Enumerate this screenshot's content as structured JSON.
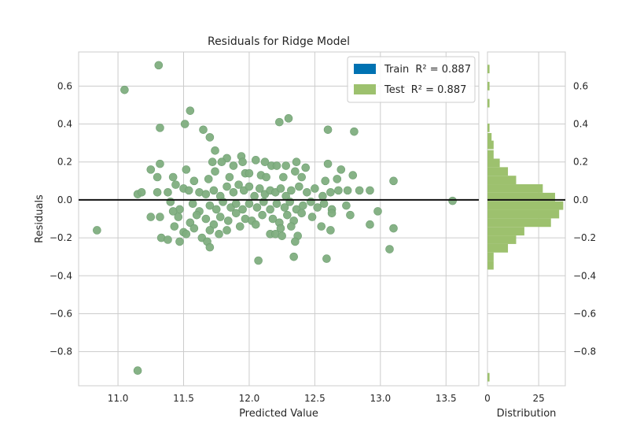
{
  "chart_data": {
    "type": "scatter",
    "title": "Residuals for Ridge Model",
    "xlabel": "Predicted Value",
    "ylabel": "Residuals",
    "xlim": [
      10.7,
      13.75
    ],
    "ylim": [
      -0.98,
      0.78
    ],
    "x_ticks": [
      "11.0",
      "11.5",
      "12.0",
      "12.5",
      "13.0",
      "13.5"
    ],
    "y_ticks": [
      "0.6",
      "0.4",
      "0.2",
      "0.0",
      "−0.2",
      "−0.4",
      "−0.6",
      "−0.8"
    ],
    "grid": true,
    "zero_line": 0,
    "legend": {
      "placement": "top-right",
      "entries": [
        {
          "prefix": "Train",
          "r2_text": "R² = 0.887",
          "color": "#0072b2"
        },
        {
          "prefix": "Test",
          "r2_text": "R² = 0.887",
          "color": "#9dc16e"
        }
      ]
    },
    "point_color": "#7fae80",
    "series": [
      {
        "name": "Test R² = 0.887",
        "points": [
          [
            11.31,
            0.71
          ],
          [
            11.05,
            0.58
          ],
          [
            11.55,
            0.47
          ],
          [
            11.51,
            0.4
          ],
          [
            11.32,
            0.38
          ],
          [
            11.65,
            0.37
          ],
          [
            11.7,
            0.33
          ],
          [
            11.74,
            0.26
          ],
          [
            12.23,
            0.41
          ],
          [
            12.3,
            0.43
          ],
          [
            12.6,
            0.37
          ],
          [
            12.8,
            0.36
          ],
          [
            11.25,
            0.16
          ],
          [
            11.32,
            0.19
          ],
          [
            11.52,
            0.16
          ],
          [
            11.83,
            0.22
          ],
          [
            11.79,
            0.2
          ],
          [
            11.72,
            0.2
          ],
          [
            11.88,
            0.18
          ],
          [
            11.94,
            0.23
          ],
          [
            11.95,
            0.2
          ],
          [
            12.05,
            0.21
          ],
          [
            12.12,
            0.2
          ],
          [
            12.17,
            0.18
          ],
          [
            12.21,
            0.18
          ],
          [
            12.28,
            0.18
          ],
          [
            12.36,
            0.2
          ],
          [
            12.43,
            0.17
          ],
          [
            12.6,
            0.19
          ],
          [
            12.7,
            0.16
          ],
          [
            12.79,
            0.13
          ],
          [
            11.3,
            0.12
          ],
          [
            11.42,
            0.12
          ],
          [
            11.58,
            0.1
          ],
          [
            11.69,
            0.11
          ],
          [
            11.74,
            0.15
          ],
          [
            11.85,
            0.12
          ],
          [
            11.97,
            0.14
          ],
          [
            12.0,
            0.14
          ],
          [
            12.09,
            0.13
          ],
          [
            12.13,
            0.12
          ],
          [
            12.26,
            0.12
          ],
          [
            12.35,
            0.15
          ],
          [
            12.4,
            0.12
          ],
          [
            12.58,
            0.1
          ],
          [
            12.67,
            0.11
          ],
          [
            13.1,
            0.1
          ],
          [
            11.15,
            0.03
          ],
          [
            11.18,
            0.04
          ],
          [
            11.3,
            0.04
          ],
          [
            11.38,
            0.04
          ],
          [
            11.44,
            0.08
          ],
          [
            11.5,
            0.06
          ],
          [
            11.54,
            0.05
          ],
          [
            11.62,
            0.04
          ],
          [
            11.67,
            0.03
          ],
          [
            11.73,
            0.05
          ],
          [
            11.78,
            0.02
          ],
          [
            11.83,
            0.07
          ],
          [
            11.88,
            0.04
          ],
          [
            11.92,
            0.08
          ],
          [
            11.96,
            0.05
          ],
          [
            12.0,
            0.07
          ],
          [
            12.04,
            0.02
          ],
          [
            12.08,
            0.06
          ],
          [
            12.12,
            0.03
          ],
          [
            12.16,
            0.05
          ],
          [
            12.2,
            0.04
          ],
          [
            12.24,
            0.06
          ],
          [
            12.28,
            0.02
          ],
          [
            12.32,
            0.05
          ],
          [
            12.38,
            0.07
          ],
          [
            12.44,
            0.04
          ],
          [
            12.5,
            0.06
          ],
          [
            12.56,
            0.02
          ],
          [
            12.62,
            0.04
          ],
          [
            12.68,
            0.05
          ],
          [
            12.75,
            0.05
          ],
          [
            12.84,
            0.05
          ],
          [
            12.92,
            0.05
          ],
          [
            11.4,
            -0.01
          ],
          [
            11.47,
            -0.05
          ],
          [
            11.57,
            -0.02
          ],
          [
            11.62,
            -0.06
          ],
          [
            11.7,
            -0.03
          ],
          [
            11.75,
            -0.05
          ],
          [
            11.8,
            -0.01
          ],
          [
            11.86,
            -0.04
          ],
          [
            11.9,
            -0.02
          ],
          [
            11.95,
            -0.05
          ],
          [
            12.0,
            -0.02
          ],
          [
            12.06,
            -0.04
          ],
          [
            12.11,
            -0.01
          ],
          [
            12.16,
            -0.05
          ],
          [
            12.21,
            -0.02
          ],
          [
            12.27,
            -0.04
          ],
          [
            12.31,
            -0.01
          ],
          [
            12.36,
            -0.05
          ],
          [
            12.41,
            -0.03
          ],
          [
            12.47,
            -0.01
          ],
          [
            12.52,
            -0.04
          ],
          [
            12.57,
            -0.02
          ],
          [
            12.63,
            -0.05
          ],
          [
            12.74,
            -0.03
          ],
          [
            12.98,
            -0.06
          ],
          [
            11.25,
            -0.09
          ],
          [
            11.32,
            -0.09
          ],
          [
            11.42,
            -0.06
          ],
          [
            11.46,
            -0.09
          ],
          [
            11.55,
            -0.12
          ],
          [
            11.6,
            -0.08
          ],
          [
            11.67,
            -0.1
          ],
          [
            11.73,
            -0.13
          ],
          [
            11.78,
            -0.09
          ],
          [
            11.84,
            -0.11
          ],
          [
            11.9,
            -0.07
          ],
          [
            11.97,
            -0.1
          ],
          [
            12.02,
            -0.11
          ],
          [
            12.1,
            -0.08
          ],
          [
            12.18,
            -0.1
          ],
          [
            12.23,
            -0.12
          ],
          [
            12.29,
            -0.08
          ],
          [
            12.34,
            -0.11
          ],
          [
            12.4,
            -0.07
          ],
          [
            12.48,
            -0.09
          ],
          [
            12.63,
            -0.07
          ],
          [
            12.77,
            -0.08
          ],
          [
            11.43,
            -0.14
          ],
          [
            11.5,
            -0.17
          ],
          [
            11.58,
            -0.15
          ],
          [
            11.64,
            -0.2
          ],
          [
            11.7,
            -0.16
          ],
          [
            11.77,
            -0.18
          ],
          [
            11.83,
            -0.16
          ],
          [
            11.93,
            -0.14
          ],
          [
            12.05,
            -0.13
          ],
          [
            12.16,
            -0.18
          ],
          [
            12.24,
            -0.15
          ],
          [
            12.32,
            -0.14
          ],
          [
            12.37,
            -0.19
          ],
          [
            12.55,
            -0.14
          ],
          [
            12.62,
            -0.16
          ],
          [
            12.92,
            -0.13
          ],
          [
            13.1,
            -0.15
          ],
          [
            10.84,
            -0.16
          ],
          [
            11.33,
            -0.2
          ],
          [
            11.38,
            -0.21
          ],
          [
            11.47,
            -0.22
          ],
          [
            11.52,
            -0.18
          ],
          [
            11.68,
            -0.22
          ],
          [
            11.7,
            -0.25
          ],
          [
            12.2,
            -0.18
          ],
          [
            12.25,
            -0.19
          ],
          [
            12.35,
            -0.22
          ],
          [
            13.07,
            -0.26
          ],
          [
            12.07,
            -0.32
          ],
          [
            12.34,
            -0.3
          ],
          [
            12.59,
            -0.31
          ],
          [
            11.15,
            -0.9
          ],
          [
            13.55,
            -0.005
          ]
        ]
      }
    ],
    "distribution": {
      "xlabel": "Distribution",
      "x_ticks": [
        "0",
        "25"
      ],
      "xlim": [
        0,
        38
      ],
      "bin_width": 0.045,
      "bins": [
        [
          0.69,
          1
        ],
        [
          0.6,
          1
        ],
        [
          0.51,
          1
        ],
        [
          0.38,
          1
        ],
        [
          0.33,
          2
        ],
        [
          0.29,
          3
        ],
        [
          0.24,
          3
        ],
        [
          0.195,
          6
        ],
        [
          0.15,
          10
        ],
        [
          0.105,
          14
        ],
        [
          0.06,
          27
        ],
        [
          0.015,
          33
        ],
        [
          -0.03,
          37
        ],
        [
          -0.075,
          35
        ],
        [
          -0.12,
          31
        ],
        [
          -0.165,
          18
        ],
        [
          -0.21,
          14
        ],
        [
          -0.255,
          10
        ],
        [
          -0.3,
          3
        ],
        [
          -0.345,
          3
        ],
        [
          -0.935,
          1
        ]
      ],
      "color": "#9dc16e"
    }
  }
}
